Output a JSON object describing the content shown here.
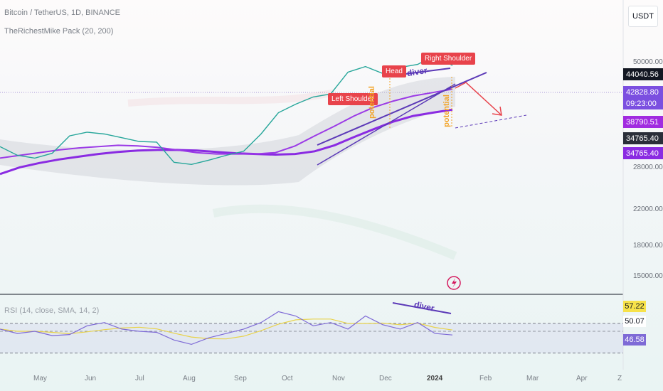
{
  "header": {
    "symbol_line": "Bitcoin / TetherUS, 1D, BINANCE",
    "indicator_line": "TheRichestMike Pack (20, 200)"
  },
  "currency_button": "USDT",
  "rsi_legend": "RSI (14, close, SMA, 14, 2)",
  "annotations": {
    "left_shoulder": "Left Shoulder",
    "head": "Head",
    "right_shoulder": "Right Shoulder",
    "diver_main": "diver",
    "diver_rsi": "diver",
    "pattern_1": "potential",
    "pattern_2": "potential"
  },
  "price_axis": {
    "ticks": [
      "50000.00",
      "28000.00",
      "22000.00",
      "18000.00",
      "15000.00"
    ],
    "labels": {
      "last_price": "44040.56",
      "ma_value": "42828.80",
      "countdown": "09:23:00",
      "ma_fast": "38790.51",
      "ma_slow_a": "34765.40",
      "ma_slow_b": "34765.40"
    }
  },
  "rsi_axis": {
    "upper": "57.22",
    "mid": "50.07",
    "current": "46.58"
  },
  "time_axis": [
    "May",
    "Jun",
    "Jul",
    "Aug",
    "Sep",
    "Oct",
    "Nov",
    "Dec",
    "2024",
    "Feb",
    "Mar",
    "Apr",
    "Z"
  ],
  "colors": {
    "ma_line": "#8a2be2",
    "annotation_red": "#e8434b",
    "rsi_line": "#7e6ad6",
    "rsi_signal": "#e8d24a",
    "trendline": "#5b39b7"
  },
  "chart_data": {
    "type": "line",
    "log_scale": true,
    "ylim": [
      13000,
      58000
    ],
    "x_labels": [
      "May",
      "Jun",
      "Jul",
      "Aug",
      "Sep",
      "Oct",
      "Nov",
      "Dec",
      "2024",
      "Feb",
      "Mar",
      "Apr"
    ],
    "series": [
      {
        "values": [
          28500,
          27200,
          26800,
          27500,
          30200,
          30800,
          30500,
          29900,
          29300,
          29200,
          26200,
          25900,
          26500,
          27200,
          27800,
          30500,
          34200,
          35800,
          37200,
          37800,
          42500,
          43800,
          42200,
          43600,
          44300,
          46500,
          44040
        ]
      },
      {
        "values": [
          26800,
          27200,
          27600,
          28000,
          28300,
          28500,
          28700,
          28600,
          28400,
          28000,
          27600,
          27400,
          27400,
          27400,
          27600,
          28600,
          30200,
          31800,
          33600,
          35200,
          36400,
          37400,
          38100,
          38790
        ]
      },
      {
        "values": [
          24600,
          25500,
          26100,
          26600,
          27000,
          27400,
          27700,
          27900,
          28000,
          28000,
          27900,
          27700,
          27500,
          27400,
          27300,
          27400,
          27800,
          28700,
          30000,
          31300,
          32600,
          33600,
          34200,
          34765
        ]
      }
    ],
    "rsi": {
      "values": [
        52,
        48,
        50,
        46,
        47,
        55,
        58,
        52,
        50,
        49,
        42,
        38,
        44,
        48,
        52,
        58,
        68,
        64,
        55,
        58,
        52,
        64,
        56,
        52,
        58,
        48,
        46.58
      ],
      "ylim": [
        20,
        80
      ],
      "upper_band": 57.22,
      "lower_band": 30
    }
  }
}
